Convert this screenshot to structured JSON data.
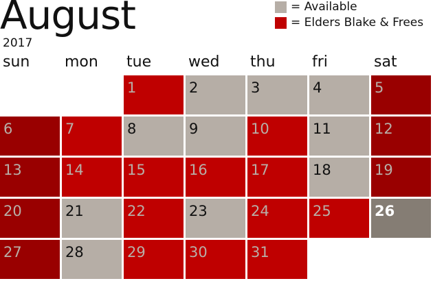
{
  "month": "August",
  "year": "2017",
  "legend": [
    {
      "label": "= Available",
      "color": "#b6aea6"
    },
    {
      "label": "= Elders Blake & Frees",
      "color": "#bf0000"
    }
  ],
  "weekdays": [
    "sun",
    "mon",
    "tue",
    "wed",
    "thu",
    "fri",
    "sat"
  ],
  "first_weekday": 2,
  "days": [
    {
      "day": "1",
      "status": "booked"
    },
    {
      "day": "2",
      "status": "available"
    },
    {
      "day": "3",
      "status": "available"
    },
    {
      "day": "4",
      "status": "available"
    },
    {
      "day": "5",
      "status": "booked"
    },
    {
      "day": "6",
      "status": "booked"
    },
    {
      "day": "7",
      "status": "booked"
    },
    {
      "day": "8",
      "status": "available"
    },
    {
      "day": "9",
      "status": "available"
    },
    {
      "day": "10",
      "status": "booked"
    },
    {
      "day": "11",
      "status": "available"
    },
    {
      "day": "12",
      "status": "booked"
    },
    {
      "day": "13",
      "status": "booked"
    },
    {
      "day": "14",
      "status": "booked"
    },
    {
      "day": "15",
      "status": "booked"
    },
    {
      "day": "16",
      "status": "booked"
    },
    {
      "day": "17",
      "status": "booked"
    },
    {
      "day": "18",
      "status": "available"
    },
    {
      "day": "19",
      "status": "booked"
    },
    {
      "day": "20",
      "status": "booked"
    },
    {
      "day": "21",
      "status": "available"
    },
    {
      "day": "22",
      "status": "booked"
    },
    {
      "day": "23",
      "status": "available"
    },
    {
      "day": "24",
      "status": "booked"
    },
    {
      "day": "25",
      "status": "booked"
    },
    {
      "day": "26",
      "status": "selected"
    },
    {
      "day": "27",
      "status": "booked"
    },
    {
      "day": "28",
      "status": "available"
    },
    {
      "day": "29",
      "status": "booked"
    },
    {
      "day": "30",
      "status": "booked"
    },
    {
      "day": "31",
      "status": "booked"
    }
  ]
}
